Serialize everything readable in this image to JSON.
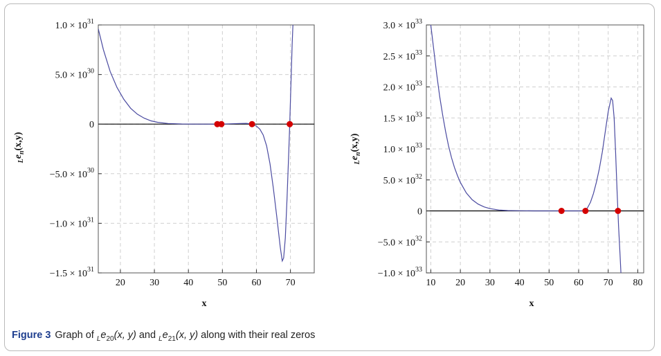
{
  "caption": {
    "label": "Figure 3",
    "text_a": "Graph of ",
    "term1_prefix": "L",
    "term1_e": "e",
    "term1_sub": "20",
    "term1_args": "(x, y)",
    "text_b": " and ",
    "term2_prefix": "L",
    "term2_e": "e",
    "term2_sub": "21",
    "term2_args": "(x, y)",
    "text_c": " along with their real zeros"
  },
  "colors": {
    "curve": "#4a4aa0",
    "zero_point": "#d40000",
    "axis": "#000000",
    "grid": "#cfcfcf"
  },
  "chart_data": [
    {
      "type": "line",
      "series_label": "Le20(x,y)",
      "xlabel": "x",
      "ylabel_prefix": "L",
      "ylabel_main": "e",
      "ylabel_sub": "n",
      "ylabel_args": "(x,y)",
      "xlim": [
        13.5,
        77
      ],
      "ylim": [
        -1.5e+31,
        1e+31
      ],
      "xticks": [
        20,
        30,
        40,
        50,
        60,
        70
      ],
      "yticks": [
        {
          "value": 1e+31,
          "mant": "1.0",
          "exp": "31"
        },
        {
          "value": 5e+30,
          "mant": "5.0",
          "exp": "30"
        },
        {
          "value": 0,
          "mant": "0",
          "exp": ""
        },
        {
          "value": -5e+30,
          "mant": "−5.0",
          "exp": "30"
        },
        {
          "value": -1e+31,
          "mant": "−1.0",
          "exp": "31"
        },
        {
          "value": -1.5e+31,
          "mant": "−1.5",
          "exp": "31"
        }
      ],
      "curve": {
        "x": [
          13.5,
          15,
          17,
          19,
          21,
          23,
          25,
          27,
          29,
          31,
          34,
          38,
          42,
          46,
          49,
          52,
          55,
          57,
          58.5,
          60,
          61,
          62,
          63,
          64,
          65,
          66,
          67,
          67.6,
          68,
          68.5,
          69,
          69.5,
          69.8,
          70.1,
          70.5,
          70.8
        ],
        "y": [
          9.6e+30,
          7.5e+30,
          5.3e+30,
          3.7e+30,
          2.5e+30,
          1.6e+30,
          1e+30,
          6e+29,
          3.3e+29,
          1.8e+29,
          6e+28,
          1.5e+28,
          3e+27,
          1e+27,
          3e+26,
          3e+28,
          6e+28,
          8e+28,
          2e+28,
          -2e+29,
          -5e+29,
          -1.1e+30,
          -2.2e+30,
          -4e+30,
          -6.5e+30,
          -9.4e+30,
          -1.24e+31,
          -1.38e+31,
          -1.35e+31,
          -1.15e+31,
          -7.5e+30,
          -3e+30,
          0,
          3.5e+30,
          8e+30,
          1.05e+31
        ]
      },
      "zeros": [
        48.5,
        49.7,
        58.7,
        69.8
      ]
    },
    {
      "type": "line",
      "series_label": "Le21(x,y)",
      "xlabel": "x",
      "ylabel_prefix": "L",
      "ylabel_main": "e",
      "ylabel_sub": "n",
      "ylabel_args": "(x,y)",
      "xlim": [
        8.5,
        82
      ],
      "ylim": [
        -1e+33,
        3e+33
      ],
      "xticks": [
        10,
        20,
        30,
        40,
        50,
        60,
        70,
        80
      ],
      "yticks": [
        {
          "value": 3e+33,
          "mant": "3.0",
          "exp": "33"
        },
        {
          "value": 2.5e+33,
          "mant": "2.5",
          "exp": "33"
        },
        {
          "value": 2e+33,
          "mant": "2.0",
          "exp": "33"
        },
        {
          "value": 1.5e+33,
          "mant": "1.5",
          "exp": "33"
        },
        {
          "value": 1e+33,
          "mant": "1.0",
          "exp": "33"
        },
        {
          "value": 5e+32,
          "mant": "5.0",
          "exp": "32"
        },
        {
          "value": 0,
          "mant": "0",
          "exp": ""
        },
        {
          "value": -5e+32,
          "mant": "−5.0",
          "exp": "32"
        },
        {
          "value": -1e+33,
          "mant": "−1.0",
          "exp": "33"
        }
      ],
      "curve": {
        "x": [
          10,
          11,
          12,
          13,
          14,
          15,
          16,
          17,
          18,
          19,
          20,
          22,
          24,
          26,
          28,
          30,
          33,
          36,
          40,
          45,
          50,
          54,
          57,
          60,
          62,
          63,
          64,
          65,
          66,
          67,
          68,
          69,
          70,
          71,
          71.5,
          72,
          72.5,
          73,
          73.5,
          74,
          74.3
        ],
        "y": [
          3e+33,
          2.6e+33,
          2.2e+33,
          1.85e+33,
          1.55e+33,
          1.28e+33,
          1.05e+33,
          8.6e+32,
          7e+32,
          5.7e+32,
          4.6e+32,
          2.9e+32,
          1.8e+32,
          1.1e+32,
          6.5e+31,
          3.7e+31,
          1.5e+31,
          6e+30,
          2e+30,
          5e+29,
          2e+29,
          2e+28,
          3e+28,
          2e+29,
          1e+30,
          5e+31,
          1.4e+32,
          2.8e+32,
          4.6e+32,
          6.8e+32,
          9.5e+32,
          1.28e+33,
          1.6e+33,
          1.82e+33,
          1.78e+33,
          1.5e+33,
          9.5e+32,
          3e+32,
          -2.5e+32,
          -7e+32,
          -1e+33
        ]
      },
      "zeros": [
        54.2,
        62.3,
        73.3
      ]
    }
  ]
}
